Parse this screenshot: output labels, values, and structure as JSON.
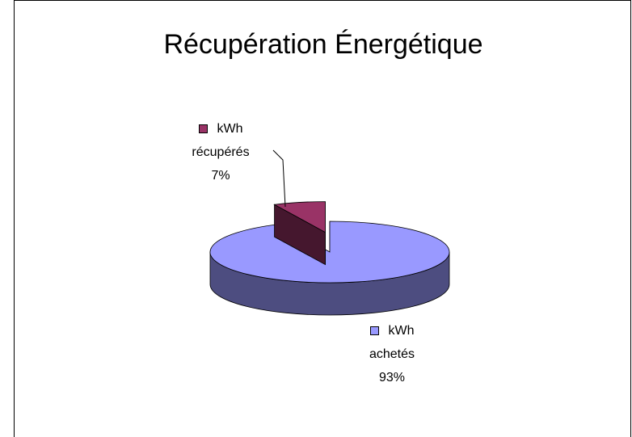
{
  "chart_data": {
    "type": "pie3d",
    "title": "Récupération Énergétique",
    "categories": [
      "kWh achetés",
      "kWh récupérés"
    ],
    "values": [
      93,
      7
    ],
    "value_labels": [
      "93%",
      "7%"
    ],
    "colors": [
      "#9999ff",
      "#993366"
    ]
  }
}
